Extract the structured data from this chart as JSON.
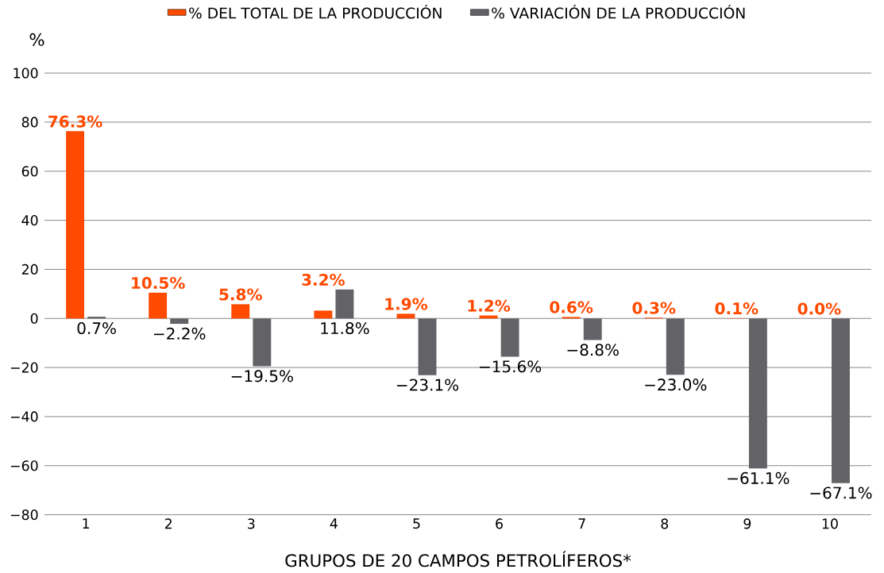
{
  "chart_data": {
    "type": "bar",
    "ylabel": "%",
    "xlabel": "GRUPOS DE 20 CAMPOS PETROLÍFEROS*",
    "categories": [
      "1",
      "2",
      "3",
      "4",
      "5",
      "6",
      "7",
      "8",
      "9",
      "10"
    ],
    "series": [
      {
        "name": "% DEL TOTAL DE LA PRODUCCIÓN",
        "color": "#ff4a00",
        "values": [
          76.3,
          10.5,
          5.8,
          3.2,
          1.9,
          1.2,
          0.6,
          0.3,
          0.1,
          0.0
        ],
        "value_labels": [
          "76.3%",
          "10.5%",
          "5.8%",
          "3.2%",
          "1.9%",
          "1.2%",
          "0.6%",
          "0.3%",
          "0.1%",
          "0.0%"
        ]
      },
      {
        "name": "% VARIACIÓN DE LA PRODUCCIÓN",
        "color": "#636266",
        "values": [
          0.7,
          -2.2,
          -19.5,
          11.8,
          -23.1,
          -15.6,
          -8.8,
          -23.0,
          -61.1,
          -67.1
        ],
        "value_labels": [
          "0.7%",
          "−2.2%",
          "−19.5%",
          "11.8%",
          "−23.1%",
          "−15.6%",
          "−8.8%",
          "−23.0%",
          "−61.1%",
          "−67.1%"
        ]
      }
    ],
    "ylim": [
      -80,
      100
    ],
    "yticks": [
      {
        "value": -80,
        "label": "−80"
      },
      {
        "value": -60,
        "label": "−60"
      },
      {
        "value": -40,
        "label": "−40"
      },
      {
        "value": -20,
        "label": "−20"
      },
      0,
      20,
      40,
      60,
      80,
      100
    ],
    "grid": "y",
    "legend": "top"
  }
}
